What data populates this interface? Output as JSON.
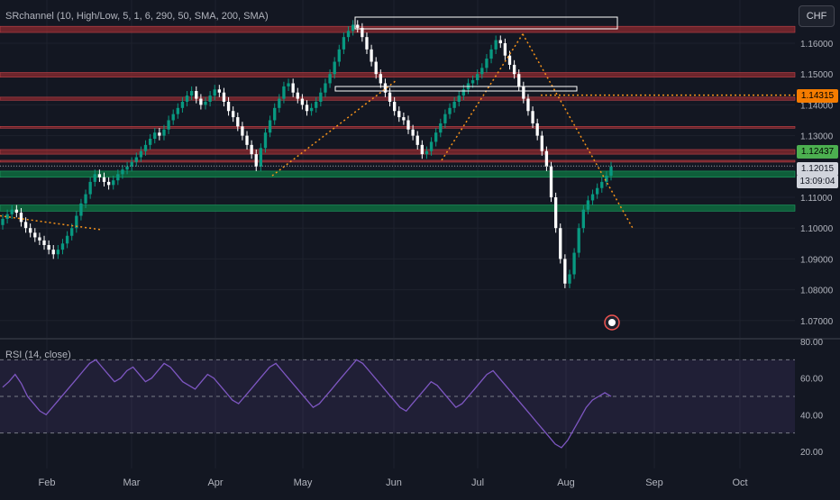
{
  "header": {
    "indicator": "SRchannel (10, High/Low, 5, 1, 6, 290, 50, SMA, 200, SMA)",
    "currency": "CHF"
  },
  "rsi_label": "RSI (14, close)",
  "tags": {
    "level": "1.14315",
    "ask": "1.12437",
    "price": "1.12015",
    "countdown": "13:09:04"
  },
  "colors": {
    "background": "#131722",
    "up": "#089981",
    "down": "#ffffff",
    "resistance_zone": "#8b2a2f",
    "support_zone": "#0e6b3e",
    "trendline": "#f7931a",
    "rsi_line": "#7e57c2",
    "level_tag": "#f57c00",
    "ask_tag": "#4caf50"
  },
  "chart_data": [
    {
      "type": "candlestick",
      "price_ticks": [
        "1.16000",
        "1.15000",
        "1.14000",
        "1.13000",
        "1.12000",
        "1.11000",
        "1.10000",
        "1.09000",
        "1.08000",
        "1.07000"
      ],
      "time_ticks": [
        "Feb",
        "Mar",
        "Apr",
        "May",
        "Jun",
        "Jul",
        "Aug",
        "Sep",
        "Oct"
      ],
      "ylim": [
        1.065,
        1.17
      ],
      "resistance_zones": [
        [
          1.1635,
          1.1655
        ],
        [
          1.149,
          1.1505
        ],
        [
          1.1415,
          1.1425
        ],
        [
          1.1325,
          1.133
        ],
        [
          1.124,
          1.1255
        ],
        [
          1.1215,
          1.122
        ]
      ],
      "support_zones": [
        [
          1.1165,
          1.1185
        ],
        [
          1.1055,
          1.1075
        ]
      ],
      "current_price": 1.12015,
      "horizontal_level": 1.14315
    },
    {
      "type": "line",
      "title": "RSI (14, close)",
      "ticks": [
        "80.00",
        "60.00",
        "40.00",
        "20.00"
      ],
      "ylim": [
        15,
        80
      ],
      "bands": [
        70,
        50,
        30
      ]
    }
  ]
}
